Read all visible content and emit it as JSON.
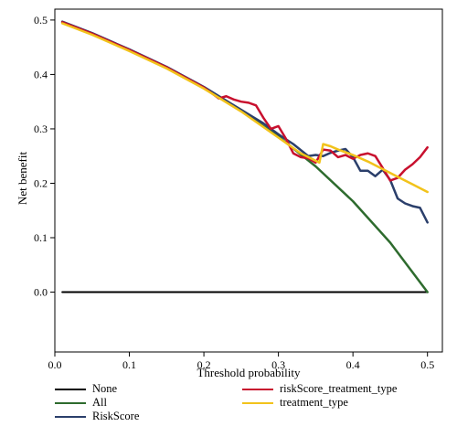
{
  "chart_data": {
    "type": "line",
    "title": "",
    "xlabel": "Threshold probability",
    "ylabel": "Net benefit",
    "xlim": [
      0,
      0.52
    ],
    "ylim": [
      -0.11,
      0.52
    ],
    "xticks": [
      "0.0",
      "0.1",
      "0.2",
      "0.3",
      "0.4",
      "0.5"
    ],
    "yticks": [
      "0.0",
      "0.1",
      "0.2",
      "0.3",
      "0.4",
      "0.5"
    ],
    "grid": false,
    "legend_position": "bottom",
    "series": [
      {
        "name": "None",
        "color": "#000000",
        "x": [
          0.01,
          0.5
        ],
        "y": [
          0.0,
          0.0
        ]
      },
      {
        "name": "All",
        "color": "#2e6b2e",
        "x": [
          0.01,
          0.05,
          0.1,
          0.15,
          0.2,
          0.25,
          0.3,
          0.35,
          0.4,
          0.45,
          0.5
        ],
        "y": [
          0.495,
          0.474,
          0.444,
          0.412,
          0.375,
          0.333,
          0.286,
          0.231,
          0.167,
          0.091,
          0.0
        ]
      },
      {
        "name": "RiskScore",
        "color": "#2b3f6b",
        "x": [
          0.01,
          0.05,
          0.1,
          0.15,
          0.2,
          0.25,
          0.28,
          0.3,
          0.32,
          0.34,
          0.35,
          0.36,
          0.37,
          0.38,
          0.39,
          0.4,
          0.41,
          0.42,
          0.43,
          0.44,
          0.45,
          0.46,
          0.47,
          0.48,
          0.49,
          0.5
        ],
        "y": [
          0.497,
          0.476,
          0.446,
          0.414,
          0.377,
          0.335,
          0.31,
          0.29,
          0.272,
          0.25,
          0.252,
          0.25,
          0.256,
          0.26,
          0.263,
          0.248,
          0.223,
          0.223,
          0.213,
          0.225,
          0.206,
          0.172,
          0.163,
          0.158,
          0.155,
          0.128
        ]
      },
      {
        "name": "riskScore_treatment_type",
        "color": "#c8102e",
        "x": [
          0.01,
          0.05,
          0.1,
          0.15,
          0.2,
          0.22,
          0.23,
          0.24,
          0.25,
          0.26,
          0.27,
          0.28,
          0.29,
          0.3,
          0.31,
          0.32,
          0.33,
          0.34,
          0.35,
          0.36,
          0.37,
          0.38,
          0.39,
          0.4,
          0.41,
          0.42,
          0.43,
          0.44,
          0.45,
          0.46,
          0.47,
          0.48,
          0.49,
          0.5
        ],
        "y": [
          0.496,
          0.475,
          0.445,
          0.413,
          0.376,
          0.356,
          0.36,
          0.354,
          0.35,
          0.348,
          0.343,
          0.32,
          0.3,
          0.305,
          0.282,
          0.255,
          0.248,
          0.246,
          0.238,
          0.262,
          0.26,
          0.248,
          0.252,
          0.245,
          0.252,
          0.255,
          0.25,
          0.228,
          0.205,
          0.21,
          0.225,
          0.235,
          0.248,
          0.266
        ]
      },
      {
        "name": "treatment_type",
        "color": "#f2c31b",
        "x": [
          0.01,
          0.05,
          0.1,
          0.15,
          0.2,
          0.25,
          0.3,
          0.33,
          0.345,
          0.355,
          0.36,
          0.37,
          0.38,
          0.4,
          0.42,
          0.44,
          0.46,
          0.48,
          0.5
        ],
        "y": [
          0.494,
          0.473,
          0.443,
          0.411,
          0.374,
          0.332,
          0.284,
          0.255,
          0.245,
          0.238,
          0.272,
          0.268,
          0.262,
          0.252,
          0.24,
          0.226,
          0.212,
          0.198,
          0.184
        ]
      }
    ]
  },
  "legend": {
    "items": [
      {
        "label": "None",
        "color": "#000000"
      },
      {
        "label": "All",
        "color": "#2e6b2e"
      },
      {
        "label": "RiskScore",
        "color": "#2b3f6b"
      },
      {
        "label": "riskScore_treatment_type",
        "color": "#c8102e"
      },
      {
        "label": "treatment_type",
        "color": "#f2c31b"
      }
    ]
  }
}
